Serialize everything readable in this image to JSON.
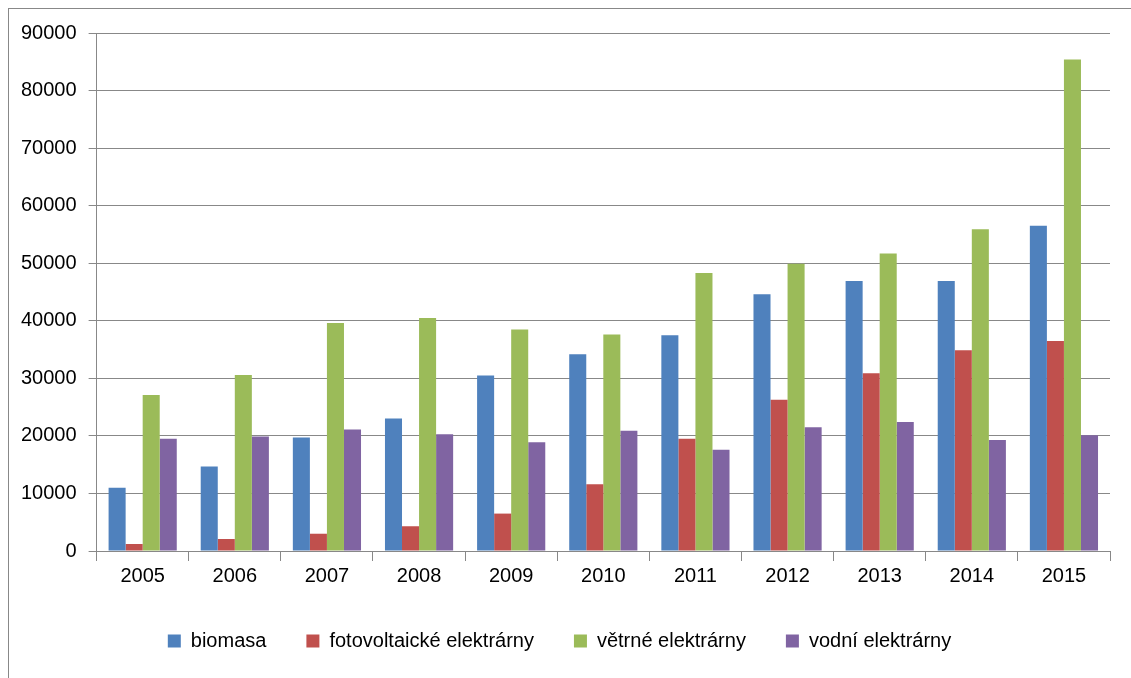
{
  "chart_data": {
    "type": "bar",
    "categories": [
      "2005",
      "2006",
      "2007",
      "2008",
      "2009",
      "2010",
      "2011",
      "2012",
      "2013",
      "2014",
      "2015"
    ],
    "series": [
      {
        "name": "biomasa",
        "color": "#4f81bd",
        "values": [
          11000,
          14700,
          19700,
          23000,
          30500,
          34200,
          37500,
          44600,
          46900,
          46900,
          56500
        ]
      },
      {
        "name": "fotovoltaické elektrárny",
        "color": "#c0504d",
        "values": [
          1200,
          2100,
          3000,
          4300,
          6500,
          11600,
          19500,
          26300,
          30900,
          34900,
          36500
        ]
      },
      {
        "name": "větrné elektrárny",
        "color": "#9bbb59",
        "values": [
          27100,
          30600,
          39600,
          40500,
          38500,
          37600,
          48300,
          49900,
          51700,
          55900,
          85400
        ]
      },
      {
        "name": "vodní elektrárny",
        "color": "#8064a2",
        "values": [
          19500,
          19900,
          21100,
          20300,
          18900,
          20900,
          17600,
          21500,
          22400,
          19300,
          20100
        ]
      }
    ],
    "ylim": [
      0,
      90000
    ],
    "yticks": [
      0,
      10000,
      20000,
      30000,
      40000,
      50000,
      60000,
      70000,
      80000,
      90000
    ],
    "grid": "y",
    "legend": "bottom"
  }
}
